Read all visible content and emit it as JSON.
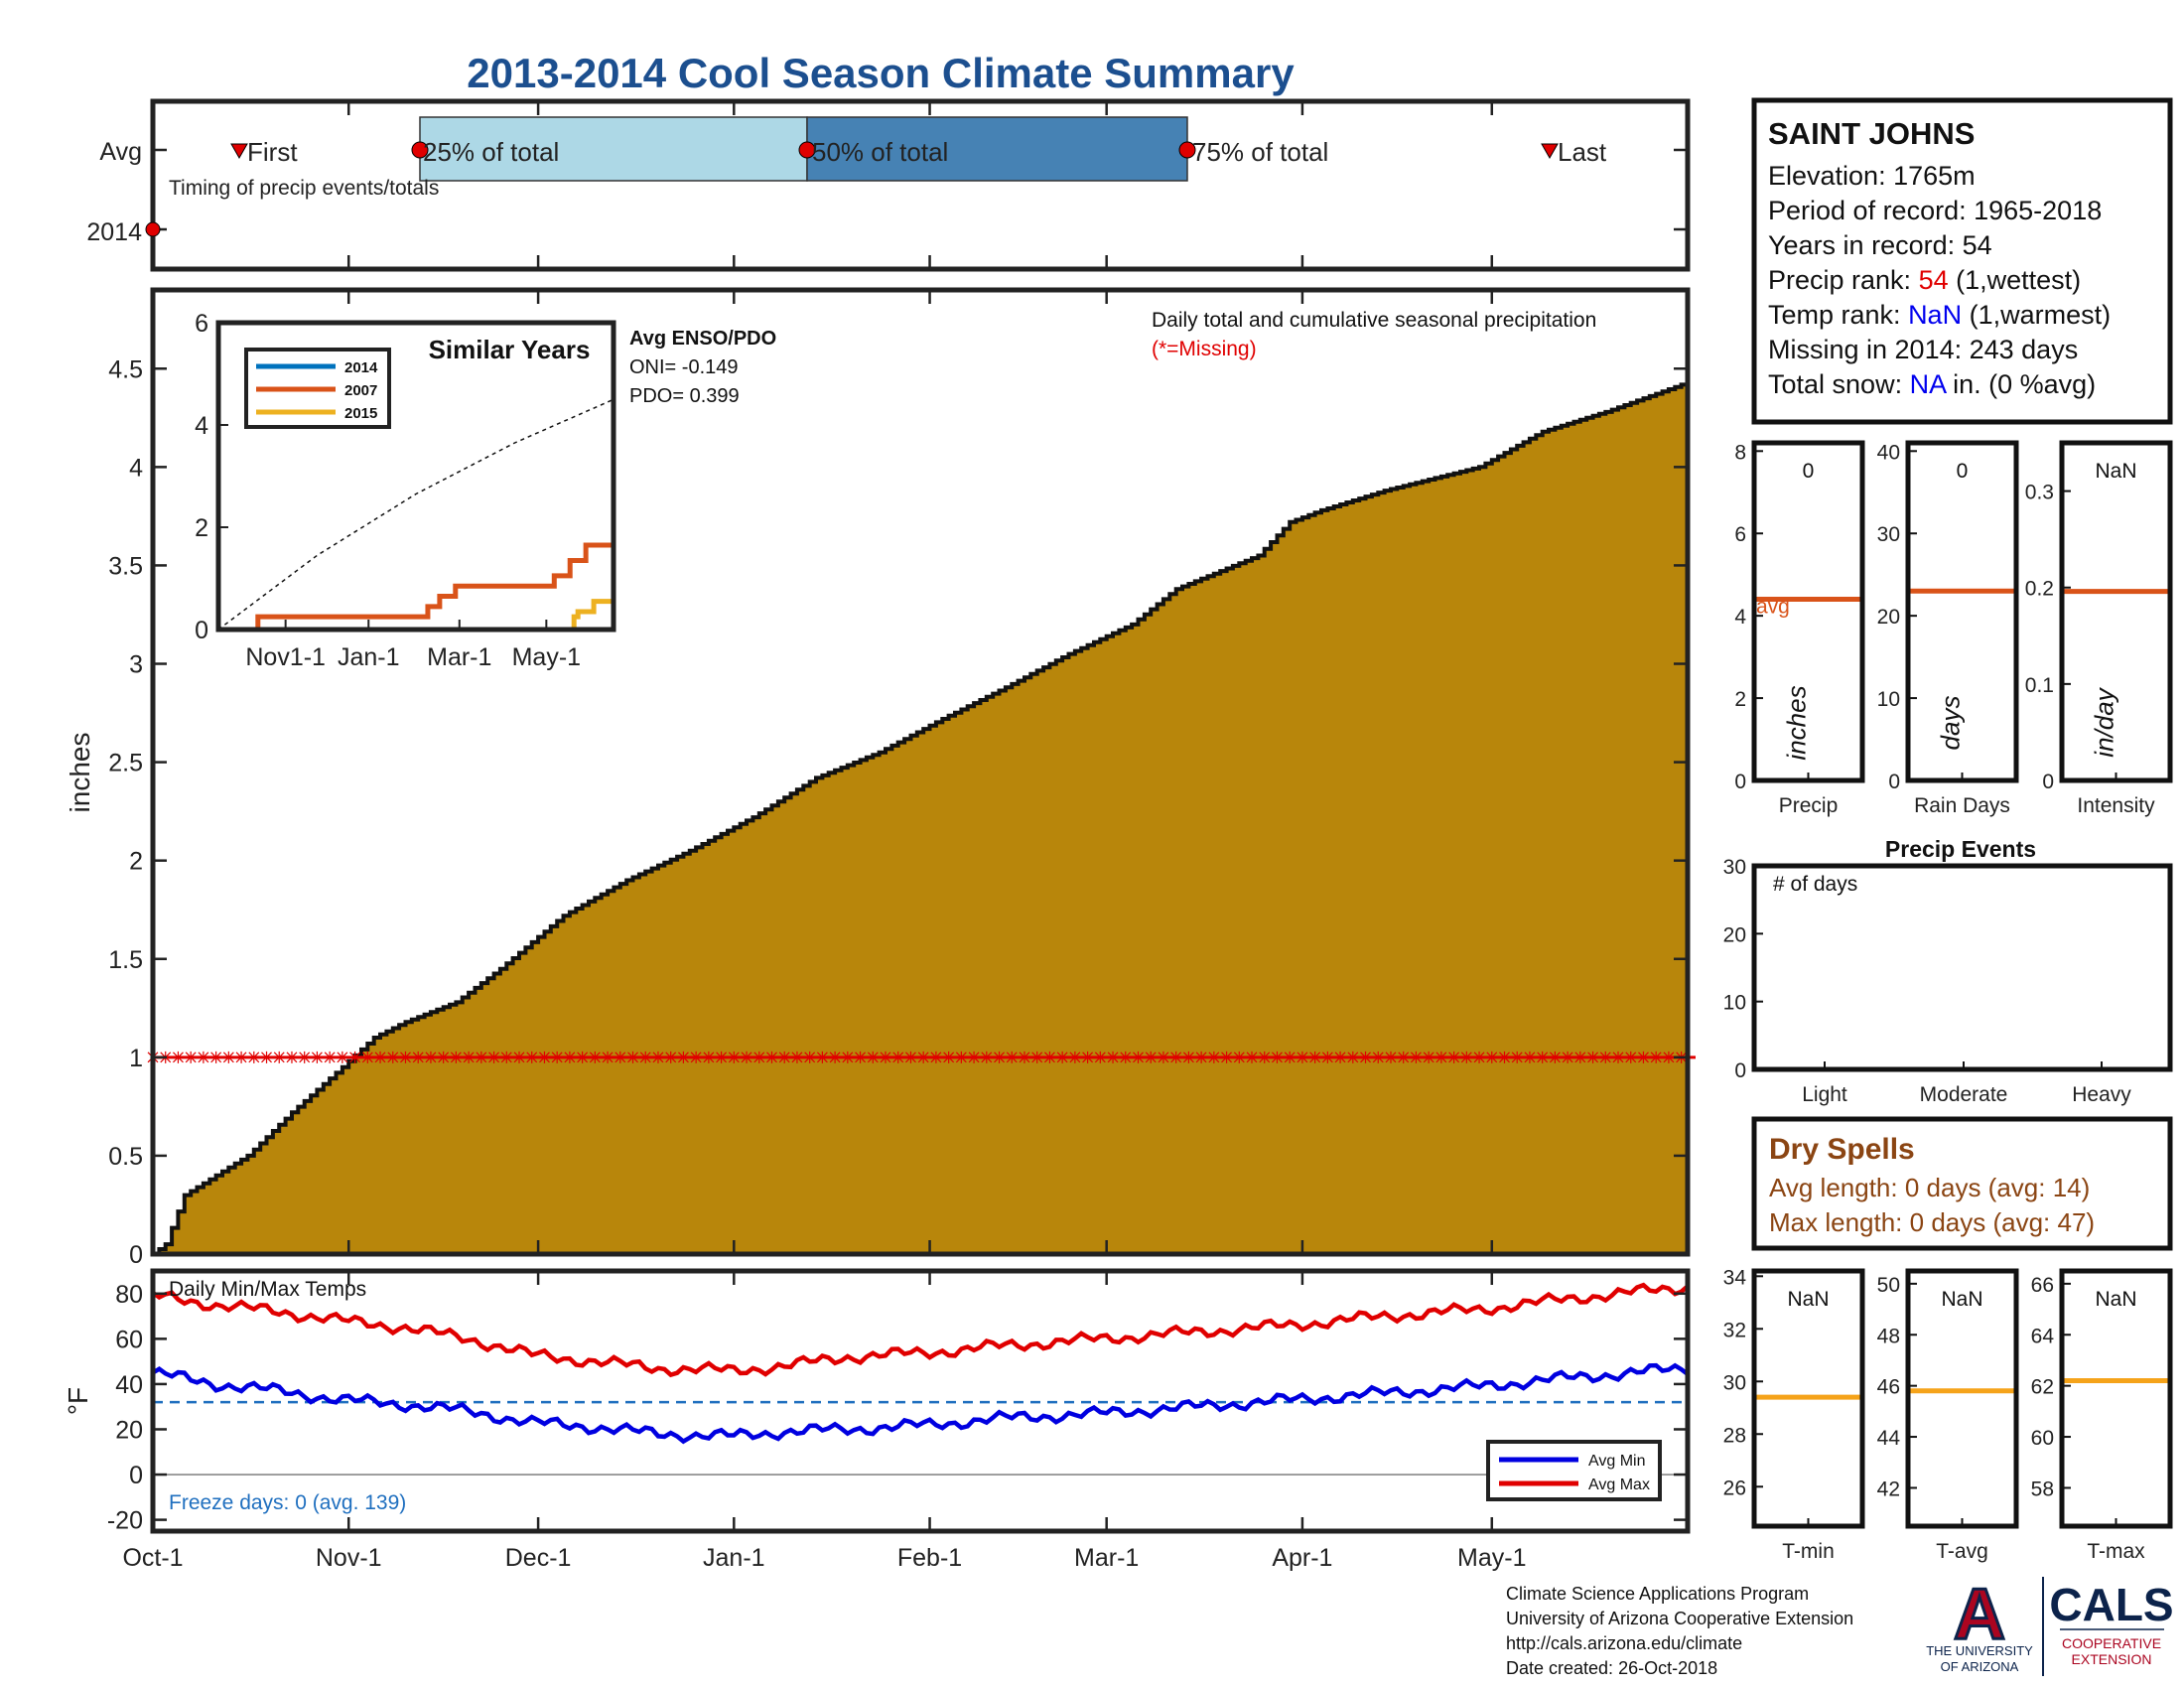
{
  "title": "2013-2014 Cool Season Climate Summary",
  "timing_panel": {
    "row_labels": [
      "Avg",
      "2014"
    ],
    "first_label": "First",
    "last_label": "Last",
    "q25_label": "25% of total",
    "q50_label": "50% of total",
    "q75_label": "75% of total",
    "caption": "Timing of precip events/totals",
    "avg_first_day": 24,
    "avg_q25_day": 71,
    "avg_q50_day": 177,
    "avg_q75_day": 282,
    "avg_last_day": 386,
    "year_marker_day": 0,
    "colors": {
      "q25_fill": "#add8e6",
      "q50_fill": "#4682b4",
      "marker": "#e00000"
    }
  },
  "station": {
    "name": "SAINT JOHNS",
    "elevation_label": "Elevation: 1765m",
    "period_label": "Period of record: 1965-2018",
    "years_label": "Years in record: 54",
    "precip_rank_prefix": "Precip rank: ",
    "precip_rank_value": "54",
    "precip_rank_suffix": " (1,wettest)",
    "temp_rank_prefix": "Temp rank: ",
    "temp_rank_value": "NaN",
    "temp_rank_suffix": " (1,warmest)",
    "missing_label": "Missing in 2014: 243 days",
    "snow_prefix": "Total snow: ",
    "snow_value": "NA",
    "snow_suffix": " in. (0 %avg)"
  },
  "dry_spells": {
    "title": "Dry Spells",
    "avg_line": "Avg length: 0 days (avg: 14)",
    "max_line": "Max length: 0 days (avg: 47)"
  },
  "footer": {
    "line1": "Climate Science Applications Program",
    "line2": "University of Arizona Cooperative Extension",
    "line3": "http://cals.arizona.edu/climate",
    "line4": " Date created: 26-Oct-2018",
    "ua_logo_letter": "A",
    "ua_name_line1": "THE UNIVERSITY",
    "ua_name_line2": "OF ARIZONA",
    "cals_logo": "CALS",
    "cals_sub1": "COOPERATIVE",
    "cals_sub2": "EXTENSION"
  },
  "chart_data": [
    {
      "id": "cumulative_precip",
      "type": "area",
      "ylabel": "inches",
      "annotation": "Daily total and cumulative seasonal precipitation",
      "missing_note": "(*=Missing)",
      "ylim": [
        0,
        4.9
      ],
      "yticks": [
        0,
        0.5,
        1,
        1.5,
        2,
        2.5,
        3,
        3.5,
        4,
        4.5
      ],
      "x_range_days": [
        0,
        243
      ],
      "x_ticks": [
        {
          "label": "Oct-1",
          "day": 0
        },
        {
          "label": "Nov-1",
          "day": 31
        },
        {
          "label": "Dec-1",
          "day": 61
        },
        {
          "label": "Jan-1",
          "day": 92
        },
        {
          "label": "Feb-1",
          "day": 123
        },
        {
          "label": "Mar-1",
          "day": 151
        },
        {
          "label": "Apr-1",
          "day": 182
        },
        {
          "label": "May-1",
          "day": 212
        }
      ],
      "cumulative_avg": {
        "x_day": [
          0,
          2,
          5,
          10,
          15,
          22,
          30,
          35,
          40,
          48,
          55,
          65,
          75,
          85,
          95,
          105,
          115,
          125,
          135,
          145,
          155,
          162,
          175,
          180,
          185,
          195,
          210,
          220,
          230,
          243
        ],
        "y": [
          0,
          0.05,
          0.3,
          0.4,
          0.5,
          0.72,
          0.95,
          1.1,
          1.18,
          1.28,
          1.45,
          1.72,
          1.9,
          2.05,
          2.22,
          2.42,
          2.55,
          2.72,
          2.88,
          3.05,
          3.2,
          3.38,
          3.55,
          3.72,
          3.78,
          3.88,
          4.0,
          4.18,
          4.28,
          4.43
        ]
      },
      "missing_value": 1.0,
      "colors": {
        "fill": "#b8860b",
        "outline": "#000000",
        "missing": "#e00000"
      }
    },
    {
      "id": "similar_years",
      "type": "line",
      "title": "Similar Years",
      "ylim": [
        0,
        6
      ],
      "yticks": [
        0,
        2,
        4,
        6
      ],
      "x_ticks": [
        "Nov1-1",
        "Jan-1",
        "Mar-1",
        "May-1"
      ],
      "avg_enso_title": "Avg ENSO/PDO",
      "oni_label": "ONI= -0.149",
      "pdo_label": "PDO= 0.399",
      "series": [
        {
          "name": "2014",
          "color": "#0072bd",
          "x": [
            0.7,
            1.0
          ],
          "y": [
            0,
            0
          ]
        },
        {
          "name": "2007",
          "color": "#d95319",
          "x": [
            0,
            0.1,
            0.47,
            0.53,
            0.56,
            0.6,
            0.72,
            0.85,
            0.88,
            0.89,
            0.93,
            0.96,
            1.0
          ],
          "y": [
            0,
            0.25,
            0.25,
            0.45,
            0.65,
            0.85,
            0.85,
            1.05,
            1.05,
            1.35,
            1.65,
            1.65,
            1.65
          ]
        },
        {
          "name": "2015",
          "color": "#edb120",
          "x": [
            0,
            0.72,
            0.9,
            0.91,
            0.95,
            1.0
          ],
          "y": [
            0,
            0,
            0.25,
            0.35,
            0.55,
            0.55
          ]
        }
      ],
      "avg_dotted": {
        "x": [
          0,
          0.25,
          0.5,
          0.75,
          1.0
        ],
        "y": [
          0,
          1.45,
          2.65,
          3.65,
          4.5
        ]
      }
    },
    {
      "id": "temps",
      "type": "line",
      "title": "Daily Min/Max Temps",
      "ylabel": "°F",
      "ylim": [
        -25,
        90
      ],
      "yticks": [
        -20,
        0,
        20,
        40,
        60,
        80
      ],
      "freeze_line": 32,
      "freeze_label": "Freeze days: 0 (avg. 139)",
      "series": [
        {
          "name": "Avg Min",
          "color": "#0000e0",
          "x_day": [
            0,
            10,
            20,
            30,
            40,
            50,
            60,
            70,
            80,
            92,
            100,
            110,
            123,
            135,
            150,
            165,
            180,
            195,
            210,
            225,
            243
          ],
          "y": [
            45,
            40,
            37,
            33,
            31,
            28,
            23,
            21,
            18,
            17,
            19,
            20,
            22,
            25,
            27,
            30,
            33,
            36,
            39,
            43,
            47
          ]
        },
        {
          "name": "Avg Max",
          "color": "#e00000",
          "x_day": [
            0,
            10,
            20,
            30,
            40,
            50,
            60,
            70,
            80,
            92,
            100,
            110,
            123,
            135,
            150,
            165,
            180,
            195,
            210,
            225,
            243
          ],
          "y": [
            79,
            75,
            72,
            68,
            65,
            60,
            53,
            50,
            47,
            46,
            48,
            52,
            54,
            57,
            60,
            63,
            66,
            70,
            73,
            78,
            83
          ]
        }
      ]
    },
    {
      "id": "precip_bar",
      "type": "bar",
      "xlabel": "Precip",
      "ylabel": "inches",
      "value_label": "0",
      "avg_label": "avg",
      "avg": 4.4,
      "ylim": [
        0,
        8.2
      ],
      "yticks": [
        0,
        2,
        4,
        6,
        8
      ]
    },
    {
      "id": "rain_days_bar",
      "type": "bar",
      "xlabel": "Rain Days",
      "ylabel": "days",
      "value_label": "0",
      "avg": 23,
      "ylim": [
        0,
        41
      ],
      "yticks": [
        0,
        10,
        20,
        30,
        40
      ]
    },
    {
      "id": "intensity_bar",
      "type": "bar",
      "xlabel": "Intensity",
      "ylabel": "in/day",
      "value_label": "NaN",
      "avg": 0.196,
      "ylim": [
        0,
        0.35
      ],
      "yticks": [
        0,
        0.1,
        0.2,
        0.3
      ]
    },
    {
      "id": "precip_events",
      "type": "bar",
      "title": "Precip Events",
      "annotation": "# of days",
      "categories": [
        "Light",
        "Moderate",
        "Heavy"
      ],
      "values": [
        0,
        0,
        0
      ],
      "ylim": [
        0,
        30
      ],
      "yticks": [
        0,
        10,
        20,
        30
      ]
    },
    {
      "id": "tmin_bar",
      "type": "bar",
      "xlabel": "T-min",
      "value_label": "NaN",
      "avg": 29.4,
      "ylim": [
        24.5,
        34.2
      ],
      "yticks": [
        26,
        28,
        30,
        32,
        34
      ]
    },
    {
      "id": "tavg_bar",
      "type": "bar",
      "xlabel": "T-avg",
      "value_label": "NaN",
      "avg": 45.8,
      "ylim": [
        40.5,
        50.5
      ],
      "yticks": [
        42,
        44,
        46,
        48,
        50
      ]
    },
    {
      "id": "tmax_bar",
      "type": "bar",
      "xlabel": "T-max",
      "value_label": "NaN",
      "avg": 62.2,
      "ylim": [
        56.5,
        66.5
      ],
      "yticks": [
        58,
        60,
        62,
        64,
        66
      ]
    }
  ]
}
